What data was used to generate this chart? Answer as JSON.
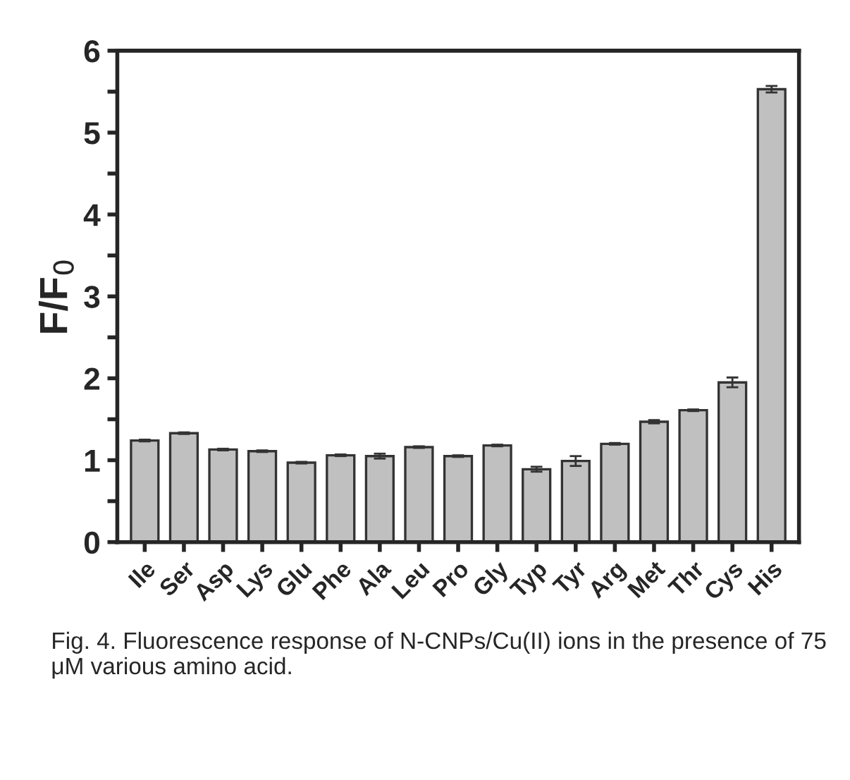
{
  "chart_data": {
    "type": "bar",
    "ylabel": "F/F$_{0}$",
    "categories": [
      "Ile",
      "Ser",
      "Asp",
      "Lys",
      "Glu",
      "Phe",
      "Ala",
      "Leu",
      "Pro",
      "Gly",
      "Typ",
      "Tyr",
      "Arg",
      "Met",
      "Thr",
      "Cys",
      "His"
    ],
    "values": [
      1.24,
      1.33,
      1.13,
      1.11,
      0.97,
      1.06,
      1.05,
      1.16,
      1.05,
      1.18,
      0.89,
      0.99,
      1.2,
      1.47,
      1.61,
      1.95,
      5.53
    ],
    "errors": [
      0.01,
      0.01,
      0.01,
      0.01,
      0.01,
      0.01,
      0.03,
      0.01,
      0.01,
      0.01,
      0.03,
      0.06,
      0.01,
      0.02,
      0.01,
      0.06,
      0.04
    ],
    "color": "#c0c0c0",
    "ylim": [
      0,
      6
    ],
    "yticks": [
      0,
      {
        "value": 0.5,
        "label": null
      },
      1,
      {
        "value": 1.5,
        "label": null
      },
      2,
      {
        "value": 2.5,
        "label": null
      },
      3,
      {
        "value": 3.5,
        "label": null
      },
      4,
      {
        "value": 4.5,
        "label": null
      },
      5,
      {
        "value": 5.5,
        "label": null
      },
      6
    ],
    "annotations": [
      "Fig. 4. Fluorescence response of N-CNPs/Cu(II) ions in the presence of 75 μM various amino acid."
    ]
  }
}
